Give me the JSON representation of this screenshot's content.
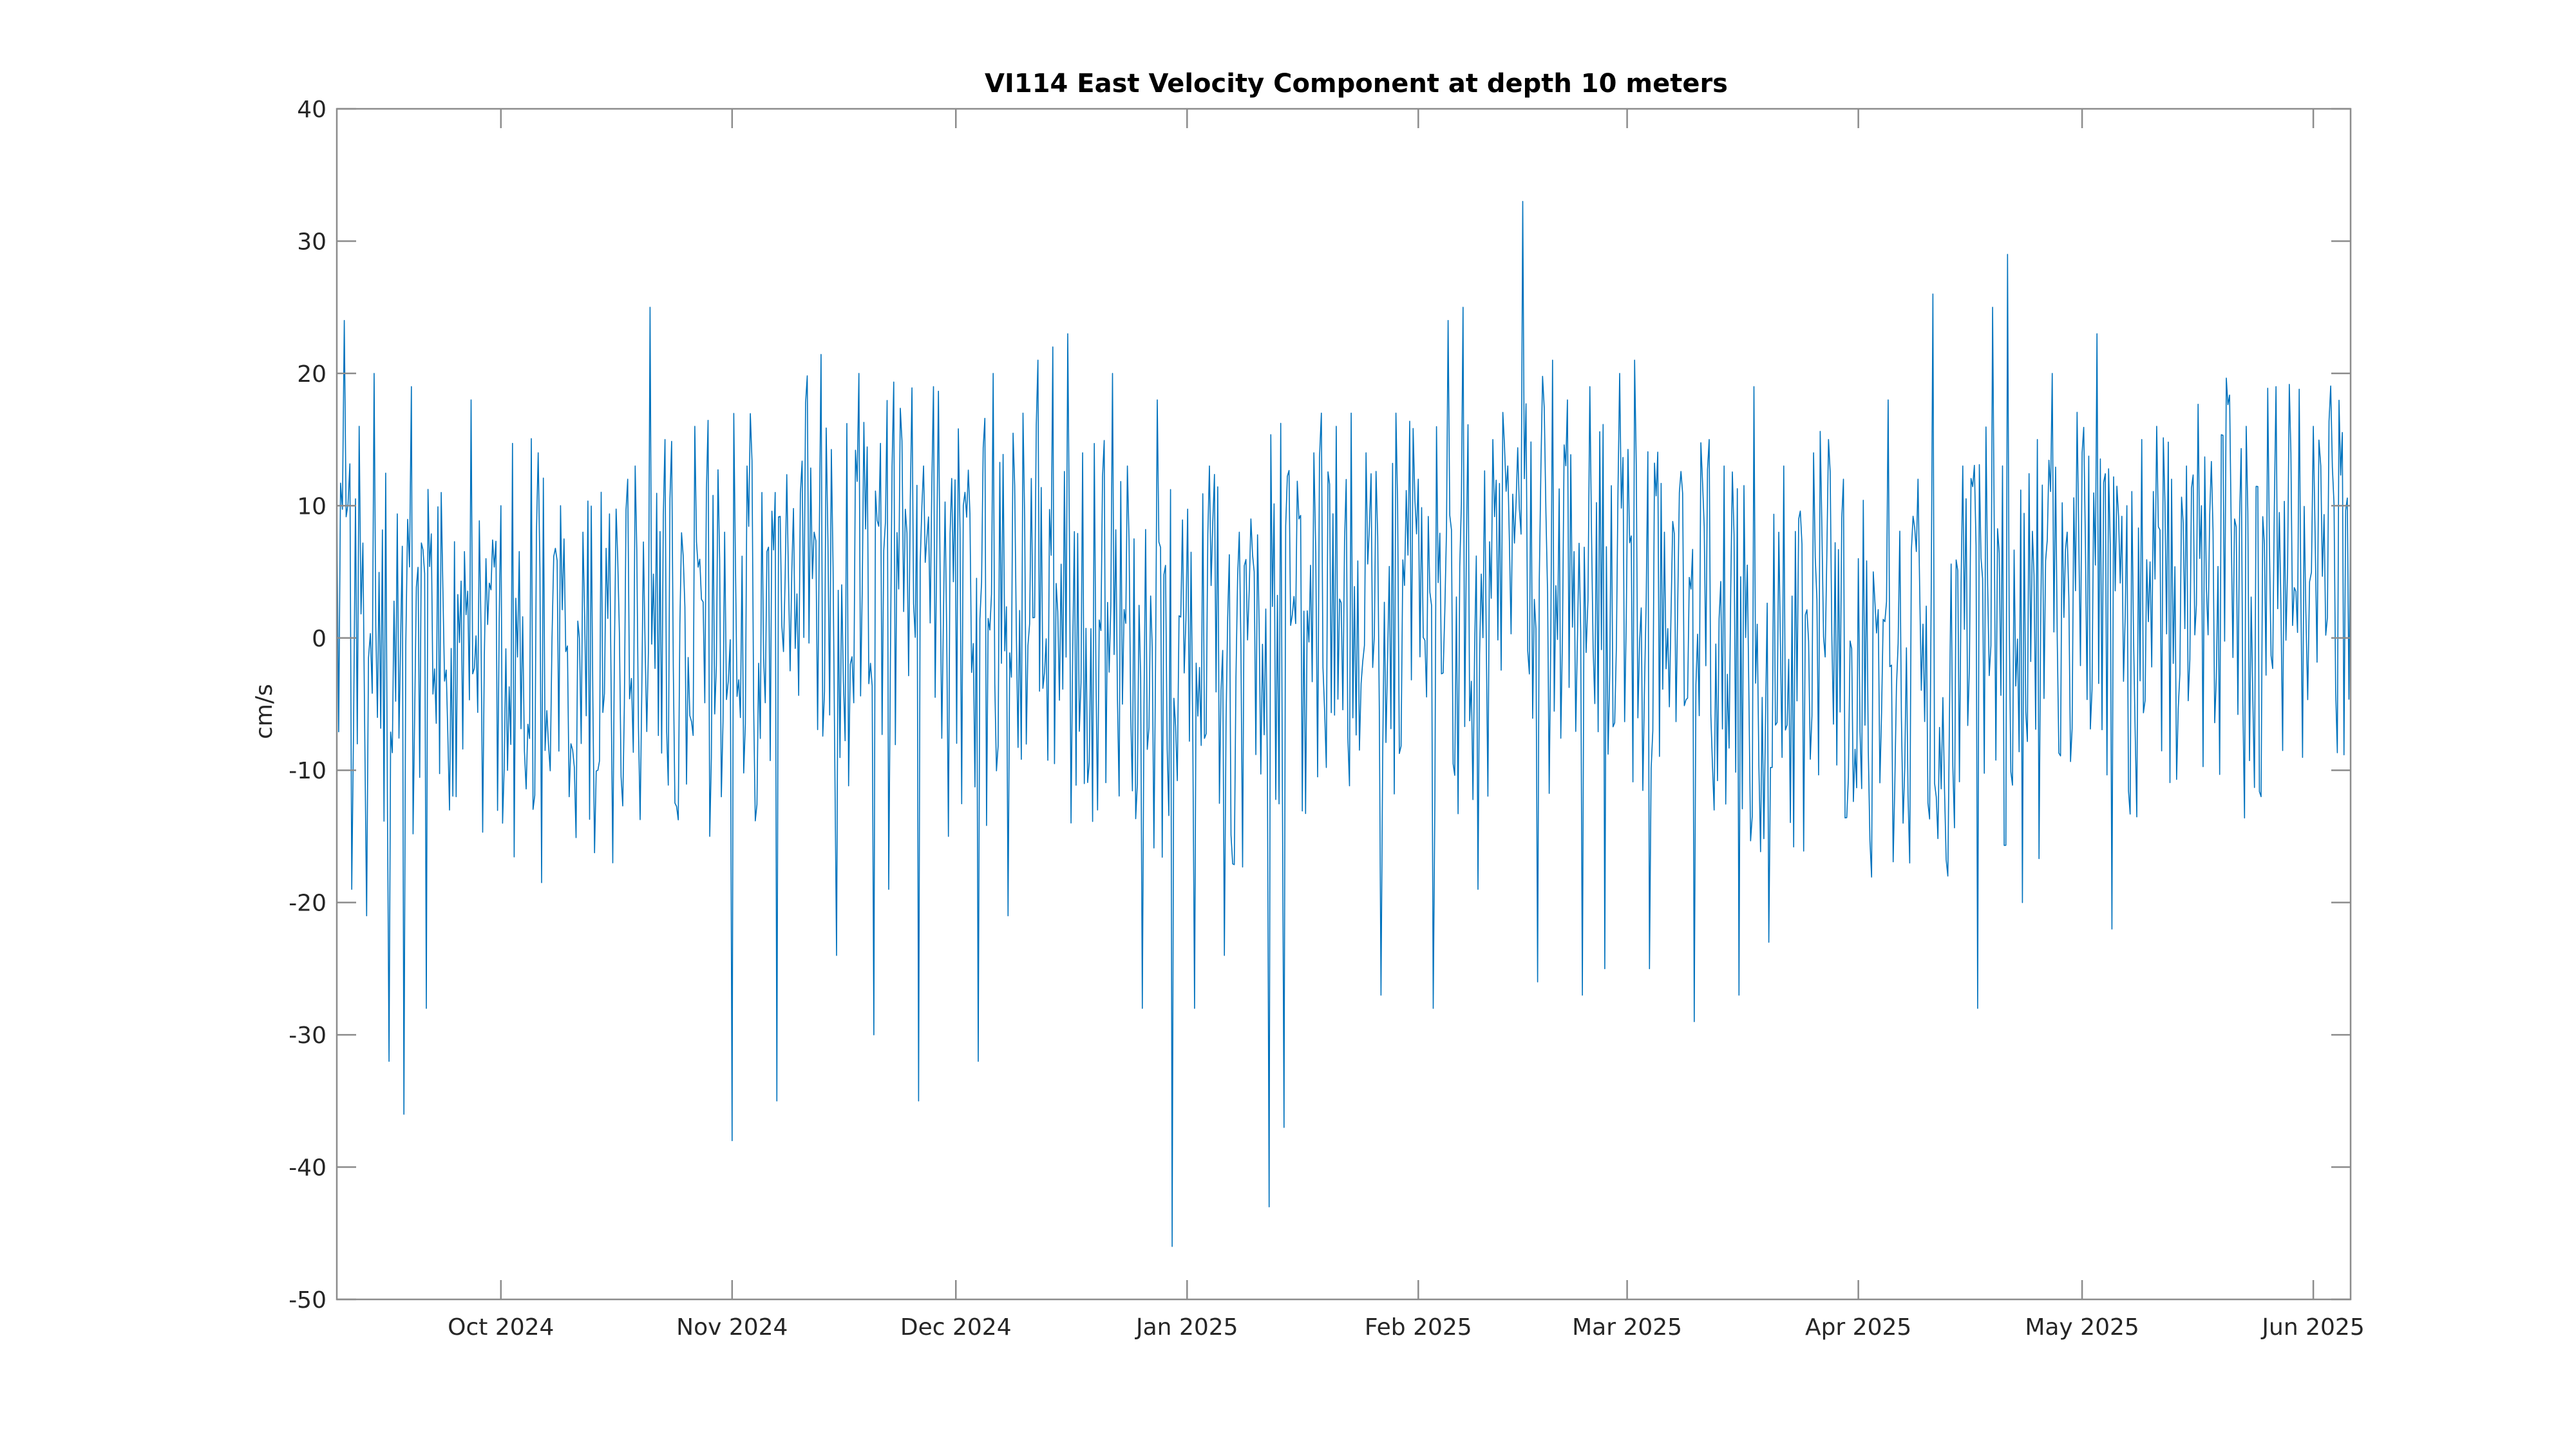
{
  "chart_data": {
    "type": "line",
    "title": "VI114 East Velocity Component at depth 10 meters",
    "xlabel": "",
    "ylabel": "cm/s",
    "x_range": [
      "2024-09-09",
      "2025-06-06"
    ],
    "ylim": [
      -50,
      40
    ],
    "yticks": [
      40,
      30,
      20,
      10,
      0,
      -10,
      -20,
      -30,
      -40,
      -50
    ],
    "ytick_labels": [
      "40",
      "30",
      "20",
      "10",
      "0",
      "-10",
      "-20",
      "-30",
      "-40",
      "-50"
    ],
    "xticks": [
      {
        "date": "2024-10-01",
        "label": "Oct 2024"
      },
      {
        "date": "2024-11-01",
        "label": "Nov 2024"
      },
      {
        "date": "2024-12-01",
        "label": "Dec 2024"
      },
      {
        "date": "2025-01-01",
        "label": "Jan 2025"
      },
      {
        "date": "2025-02-01",
        "label": "Feb 2025"
      },
      {
        "date": "2025-03-01",
        "label": "Mar 2025"
      },
      {
        "date": "2025-04-01",
        "label": "Apr 2025"
      },
      {
        "date": "2025-05-01",
        "label": "May 2025"
      },
      {
        "date": "2025-06-01",
        "label": "Jun 2025"
      }
    ],
    "grid": false,
    "legend": "none",
    "series": [
      {
        "color": "#0072bd",
        "x": [
          "2024-09-09",
          "2024-09-10",
          "2024-09-11",
          "2024-09-12",
          "2024-09-13",
          "2024-09-14",
          "2024-09-16",
          "2024-09-18",
          "2024-09-19",
          "2024-09-21",
          "2024-09-23",
          "2024-09-25",
          "2024-09-27",
          "2024-09-29",
          "2024-10-01",
          "2024-10-03",
          "2024-10-06",
          "2024-10-09",
          "2024-10-12",
          "2024-10-14",
          "2024-10-16",
          "2024-10-18",
          "2024-10-19",
          "2024-10-21",
          "2024-10-23",
          "2024-10-25",
          "2024-10-27",
          "2024-10-29",
          "2024-10-31",
          "2024-11-01",
          "2024-11-03",
          "2024-11-05",
          "2024-11-07",
          "2024-11-09",
          "2024-11-12",
          "2024-11-15",
          "2024-11-18",
          "2024-11-20",
          "2024-11-22",
          "2024-11-24",
          "2024-11-26",
          "2024-11-28",
          "2024-11-30",
          "2024-12-02",
          "2024-12-04",
          "2024-12-06",
          "2024-12-08",
          "2024-12-10",
          "2024-12-12",
          "2024-12-14",
          "2024-12-16",
          "2024-12-18",
          "2024-12-20",
          "2024-12-22",
          "2024-12-24",
          "2024-12-26",
          "2024-12-28",
          "2024-12-30",
          "2025-01-02",
          "2025-01-04",
          "2025-01-06",
          "2025-01-08",
          "2025-01-10",
          "2025-01-12",
          "2025-01-14",
          "2025-01-16",
          "2025-01-18",
          "2025-01-19",
          "2025-01-21",
          "2025-01-23",
          "2025-01-25",
          "2025-01-27",
          "2025-01-29",
          "2025-02-01",
          "2025-02-03",
          "2025-02-05",
          "2025-02-07",
          "2025-02-09",
          "2025-02-11",
          "2025-02-13",
          "2025-02-15",
          "2025-02-17",
          "2025-02-19",
          "2025-02-21",
          "2025-02-23",
          "2025-02-24",
          "2025-02-26",
          "2025-02-28",
          "2025-03-02",
          "2025-03-04",
          "2025-03-06",
          "2025-03-08",
          "2025-03-10",
          "2025-03-12",
          "2025-03-14",
          "2025-03-16",
          "2025-03-18",
          "2025-03-20",
          "2025-03-22",
          "2025-03-24",
          "2025-03-26",
          "2025-03-28",
          "2025-03-30",
          "2025-04-01",
          "2025-04-03",
          "2025-04-05",
          "2025-04-07",
          "2025-04-09",
          "2025-04-11",
          "2025-04-13",
          "2025-04-15",
          "2025-04-17",
          "2025-04-19",
          "2025-04-21",
          "2025-04-23",
          "2025-04-25",
          "2025-04-27",
          "2025-04-29",
          "2025-05-01",
          "2025-05-03",
          "2025-05-05",
          "2025-05-07",
          "2025-05-09",
          "2025-05-11",
          "2025-05-13",
          "2025-05-15",
          "2025-05-17",
          "2025-05-19",
          "2025-05-21",
          "2025-05-23",
          "2025-05-25",
          "2025-05-27",
          "2025-05-29",
          "2025-05-31",
          "2025-06-01",
          "2025-06-02",
          "2025-06-04",
          "2025-06-06"
        ],
        "values": [
          10,
          24,
          -19,
          16,
          -21,
          20,
          -32,
          -36,
          19,
          -28,
          11,
          -12,
          18,
          6,
          10,
          3,
          14,
          10,
          8,
          -10,
          -17,
          12,
          13,
          25,
          15,
          1,
          16,
          -15,
          8,
          -38,
          13,
          11,
          -35,
          5,
          8,
          -24,
          20,
          -30,
          -19,
          2,
          -35,
          19,
          -15,
          10,
          -32,
          20,
          -21,
          17,
          21,
          22,
          23,
          14,
          -13,
          20,
          13,
          -28,
          18,
          -46,
          -28,
          13,
          -24,
          8,
          5,
          -43,
          -37,
          9,
          14,
          17,
          16,
          17,
          14,
          -27,
          17,
          12,
          -28,
          24,
          25,
          -19,
          15,
          13,
          33,
          -26,
          21,
          18,
          -27,
          19,
          -25,
          20,
          21,
          -25,
          8,
          11,
          -29,
          15,
          13,
          -27,
          19,
          -23,
          13,
          9,
          14,
          15,
          12,
          6,
          5,
          18,
          -14,
          12,
          26,
          -18,
          13,
          -28,
          25,
          29,
          -20,
          15,
          20,
          8,
          14,
          23,
          -22,
          10,
          15,
          16,
          12,
          13,
          10,
          -3,
          8,
          16,
          -12,
          19,
          14,
          2,
          16,
          13,
          -4,
          9
        ]
      }
    ]
  }
}
